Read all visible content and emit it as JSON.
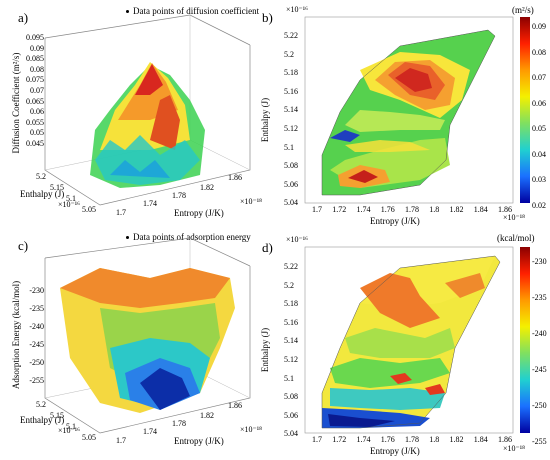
{
  "panels": {
    "a": {
      "label": "a)",
      "legend": "Data points of diffusion coefficient",
      "zlabel": "Diffusion Coefficient (m²/s)",
      "zticks": [
        "0.095",
        "0.09",
        "0.085",
        "0.08",
        "0.075",
        "0.07",
        "0.065",
        "0.06",
        "0.055",
        "0.05",
        "0.045"
      ],
      "ylabel": "Enthalpy (J)",
      "yticks": [
        "5.2",
        "5.15",
        "5.1",
        "5.05"
      ],
      "ymult": "×10⁻¹⁶",
      "xlabel": "Entropy (J/K)",
      "xticks": [
        "1.7",
        "1.74",
        "1.78",
        "1.82",
        "1.86"
      ],
      "xmult": "×10⁻¹⁸"
    },
    "b": {
      "label": "b)",
      "mult_top": "×10⁻¹⁶",
      "unit": "(m²/s)",
      "ylabel": "Enthalpy (J)",
      "yticks": [
        "5.22",
        "5.2",
        "5.18",
        "5.16",
        "5.14",
        "5.12",
        "5.1",
        "5.08",
        "5.06",
        "5.04"
      ],
      "xlabel": "Entropy (J/K)",
      "xticks": [
        "1.7",
        "1.72",
        "1.74",
        "1.76",
        "1.78",
        "1.8",
        "1.82",
        "1.84",
        "1.86"
      ],
      "xmult": "×10⁻¹⁸",
      "cbticks": [
        "0.09",
        "0.08",
        "0.07",
        "0.06",
        "0.05",
        "0.04",
        "0.03",
        "0.02"
      ]
    },
    "c": {
      "label": "c)",
      "legend": "Data points of adsorption energy",
      "zlabel": "Adsorption Energy (kcal/mol)",
      "zticks": [
        "-230",
        "-235",
        "-240",
        "-245",
        "-250",
        "-255"
      ],
      "ylabel": "Enthalpy (J)",
      "yticks": [
        "5.2",
        "5.15",
        "5.1",
        "5.05"
      ],
      "ymult": "×10⁻¹⁶",
      "xlabel": "Entropy (J/K)",
      "xticks": [
        "1.7",
        "1.74",
        "1.78",
        "1.82",
        "1.86"
      ],
      "xmult": "×10⁻¹⁸"
    },
    "d": {
      "label": "d)",
      "mult_top": "×10⁻¹⁶",
      "unit": "(kcal/mol)",
      "ylabel": "Enthalpy (J)",
      "yticks": [
        "5.22",
        "5.2",
        "5.18",
        "5.16",
        "5.14",
        "5.12",
        "5.1",
        "5.08",
        "5.06",
        "5.04"
      ],
      "xlabel": "Entropy (J/K)",
      "xticks": [
        "1.7",
        "1.72",
        "1.74",
        "1.76",
        "1.78",
        "1.8",
        "1.82",
        "1.84",
        "1.86"
      ],
      "xmult": "×10⁻¹⁸",
      "cbticks": [
        "-230",
        "-235",
        "-240",
        "-245",
        "-250",
        "-255"
      ]
    }
  },
  "chart_data": [
    {
      "type": "heatmap",
      "panel": "a",
      "style": "3d-surface",
      "x": [
        1.7,
        1.74,
        1.78,
        1.82,
        1.86
      ],
      "y": [
        5.05,
        5.1,
        5.15,
        5.2
      ],
      "zlim": [
        0.045,
        0.095
      ]
    },
    {
      "type": "heatmap",
      "panel": "b",
      "style": "filled-contour",
      "xlim": [
        1.68,
        1.87
      ],
      "ylim": [
        5.03,
        5.23
      ],
      "clim": [
        0.02,
        0.09
      ]
    },
    {
      "type": "heatmap",
      "panel": "c",
      "style": "3d-surface",
      "x": [
        1.7,
        1.74,
        1.78,
        1.82,
        1.86
      ],
      "y": [
        5.05,
        5.1,
        5.15,
        5.2
      ],
      "zlim": [
        -255,
        -230
      ]
    },
    {
      "type": "heatmap",
      "panel": "d",
      "style": "filled-contour",
      "xlim": [
        1.68,
        1.87
      ],
      "ylim": [
        5.03,
        5.23
      ],
      "clim": [
        -255,
        -230
      ]
    }
  ]
}
